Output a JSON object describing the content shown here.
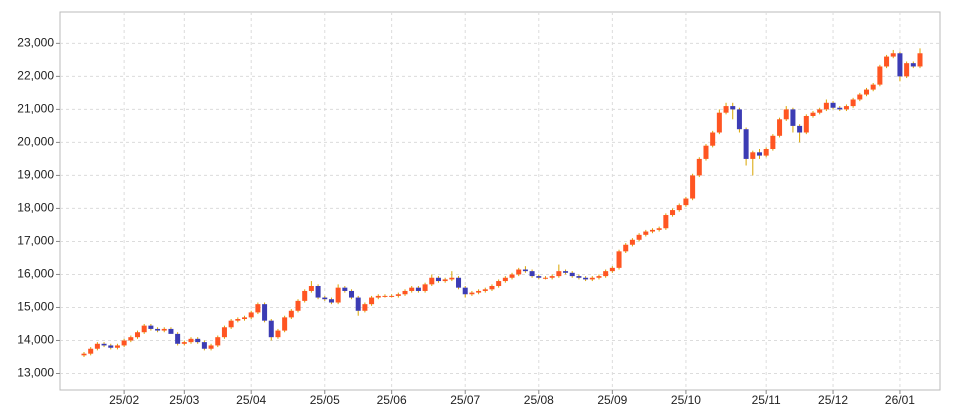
{
  "chart_data": {
    "type": "candlestick",
    "categories": [
      null,
      null,
      null,
      null,
      null,
      null,
      "25/02",
      null,
      null,
      null,
      null,
      null,
      null,
      null,
      null,
      "25/03",
      null,
      null,
      null,
      null,
      null,
      null,
      null,
      null,
      null,
      "25/04",
      null,
      null,
      null,
      null,
      null,
      null,
      null,
      null,
      null,
      null,
      "25/05",
      null,
      null,
      null,
      null,
      null,
      null,
      null,
      null,
      null,
      "25/06",
      null,
      null,
      null,
      null,
      null,
      null,
      null,
      null,
      null,
      null,
      "25/07",
      null,
      null,
      null,
      null,
      null,
      null,
      null,
      null,
      null,
      null,
      "25/08",
      null,
      null,
      null,
      null,
      null,
      null,
      null,
      null,
      null,
      null,
      "25/09",
      null,
      null,
      null,
      null,
      null,
      null,
      null,
      null,
      null,
      null,
      "25/10",
      null,
      null,
      null,
      null,
      null,
      null,
      null,
      null,
      null,
      null,
      null,
      "25/11",
      null,
      null,
      null,
      null,
      null,
      null,
      null,
      null,
      null,
      "25/12",
      null,
      null,
      null,
      null,
      null,
      null,
      null,
      null,
      null,
      "26/01",
      null,
      null,
      null
    ],
    "open": [
      13550,
      13600,
      13750,
      13900,
      13850,
      13780,
      13850,
      14000,
      14100,
      14250,
      14450,
      14350,
      14300,
      14350,
      14200,
      13900,
      13950,
      14050,
      13950,
      13750,
      13850,
      14100,
      14400,
      14600,
      14650,
      14700,
      14850,
      15100,
      14600,
      14100,
      14300,
      14700,
      14900,
      15200,
      15500,
      15650,
      15300,
      15250,
      15150,
      15600,
      15500,
      15300,
      14900,
      15100,
      15300,
      15350,
      15350,
      15350,
      15400,
      15500,
      15600,
      15500,
      15700,
      15900,
      15800,
      15850,
      15900,
      15600,
      15400,
      15450,
      15500,
      15550,
      15650,
      15800,
      15900,
      16000,
      16150,
      16100,
      15950,
      15900,
      15900,
      15950,
      16100,
      16050,
      15950,
      15900,
      15850,
      15900,
      15950,
      16100,
      16200,
      16700,
      16900,
      17050,
      17200,
      17300,
      17350,
      17400,
      17800,
      17950,
      18100,
      18300,
      19000,
      19500,
      19900,
      20300,
      20900,
      21100,
      21000,
      20400,
      19500,
      19700,
      19600,
      19800,
      20200,
      20700,
      21000,
      20500,
      20300,
      20800,
      20900,
      21000,
      21200,
      21050,
      21000,
      21100,
      21300,
      21450,
      21600,
      21750,
      22300,
      22600,
      22700,
      22000,
      22400,
      22300
    ],
    "high": [
      13650,
      13800,
      13950,
      13950,
      13900,
      13900,
      14050,
      14150,
      14300,
      14500,
      14500,
      14400,
      14400,
      14400,
      14250,
      14000,
      14100,
      14100,
      14000,
      13900,
      14150,
      14450,
      14650,
      14700,
      14750,
      14900,
      15150,
      15150,
      14650,
      14350,
      14750,
      14950,
      15250,
      15550,
      15800,
      15700,
      15350,
      15300,
      15700,
      15650,
      15550,
      15350,
      15150,
      15350,
      15400,
      15400,
      15400,
      15450,
      15550,
      15650,
      15650,
      15750,
      16000,
      15950,
      15900,
      16100,
      15950,
      15650,
      15500,
      15550,
      15600,
      15700,
      15850,
      15950,
      16050,
      16200,
      16250,
      16150,
      16000,
      15950,
      16000,
      16300,
      16150,
      16100,
      16000,
      15950,
      15950,
      16000,
      16150,
      16250,
      16750,
      16950,
      17100,
      17250,
      17350,
      17400,
      17450,
      17850,
      18000,
      18150,
      18350,
      19050,
      19550,
      19950,
      20350,
      21000,
      21200,
      21200,
      21050,
      20450,
      19750,
      19800,
      19850,
      20250,
      20750,
      21100,
      21050,
      20550,
      20850,
      20950,
      21050,
      21300,
      21250,
      21100,
      21150,
      21350,
      21500,
      21650,
      21800,
      22350,
      22650,
      22800,
      22750,
      22450,
      22450,
      22850
    ],
    "low": [
      13500,
      13550,
      13700,
      13800,
      13730,
      13730,
      13800,
      13950,
      14050,
      14200,
      14300,
      14250,
      14250,
      14250,
      13850,
      13850,
      13900,
      13900,
      13700,
      13700,
      13800,
      14050,
      14350,
      14550,
      14600,
      14650,
      14800,
      14550,
      14000,
      14050,
      14250,
      14650,
      14850,
      15150,
      15450,
      15250,
      15200,
      15100,
      15100,
      15450,
      15250,
      14750,
      14850,
      15050,
      15250,
      15300,
      15300,
      15300,
      15350,
      15450,
      15450,
      15450,
      15650,
      15750,
      15750,
      15800,
      15550,
      15300,
      15350,
      15400,
      15450,
      15500,
      15600,
      15750,
      15850,
      15950,
      16050,
      15900,
      15850,
      15850,
      15850,
      15900,
      16000,
      15900,
      15850,
      15800,
      15800,
      15850,
      15900,
      16050,
      16150,
      16650,
      16850,
      17000,
      17150,
      17250,
      17300,
      17350,
      17750,
      17900,
      18050,
      18250,
      18950,
      19450,
      19850,
      20250,
      20850,
      20700,
      20300,
      19300,
      19000,
      19500,
      19550,
      19750,
      20150,
      20650,
      20300,
      20000,
      20250,
      20750,
      20850,
      20950,
      21000,
      20950,
      20950,
      21050,
      21250,
      21400,
      21550,
      21700,
      22250,
      22550,
      21850,
      21950,
      22250,
      22250
    ],
    "close": [
      13600,
      13750,
      13900,
      13850,
      13780,
      13850,
      14000,
      14100,
      14250,
      14450,
      14350,
      14300,
      14350,
      14200,
      13900,
      13950,
      14050,
      13950,
      13750,
      13850,
      14100,
      14400,
      14600,
      14650,
      14700,
      14850,
      15100,
      14600,
      14100,
      14300,
      14700,
      14900,
      15200,
      15500,
      15650,
      15300,
      15250,
      15150,
      15600,
      15500,
      15300,
      14900,
      15100,
      15300,
      15350,
      15350,
      15350,
      15400,
      15500,
      15600,
      15500,
      15700,
      15900,
      15800,
      15850,
      15900,
      15600,
      15400,
      15450,
      15500,
      15550,
      15650,
      15800,
      15900,
      16000,
      16150,
      16100,
      15950,
      15900,
      15900,
      15950,
      16100,
      16050,
      15950,
      15900,
      15850,
      15900,
      15950,
      16100,
      16200,
      16700,
      16900,
      17050,
      17200,
      17300,
      17350,
      17400,
      17800,
      17950,
      18100,
      18300,
      19000,
      19500,
      19900,
      20300,
      20900,
      21100,
      21000,
      20400,
      19500,
      19700,
      19600,
      19800,
      20200,
      20700,
      21000,
      20500,
      20300,
      20800,
      20900,
      21000,
      21200,
      21050,
      21000,
      21100,
      21300,
      21450,
      21600,
      21750,
      22300,
      22600,
      22700,
      22000,
      22400,
      22300,
      22700
    ],
    "up_color": "#ff5522",
    "down_color": "#3c3cb4",
    "wick_color": "#d9a400",
    "ylim": [
      12500,
      23950
    ],
    "yticks": [
      {
        "value": 13000,
        "label": "13,000"
      },
      {
        "value": 14000,
        "label": "14,000"
      },
      {
        "value": 15000,
        "label": "15,000"
      },
      {
        "value": 16000,
        "label": "16,000"
      },
      {
        "value": 17000,
        "label": "17,000"
      },
      {
        "value": 18000,
        "label": "18,000"
      },
      {
        "value": 19000,
        "label": "19,000"
      },
      {
        "value": 20000,
        "label": "20,000"
      },
      {
        "value": 21000,
        "label": "21,000"
      },
      {
        "value": 22000,
        "label": "22,000"
      },
      {
        "value": 23000,
        "label": "23,000"
      }
    ],
    "grid": true
  }
}
